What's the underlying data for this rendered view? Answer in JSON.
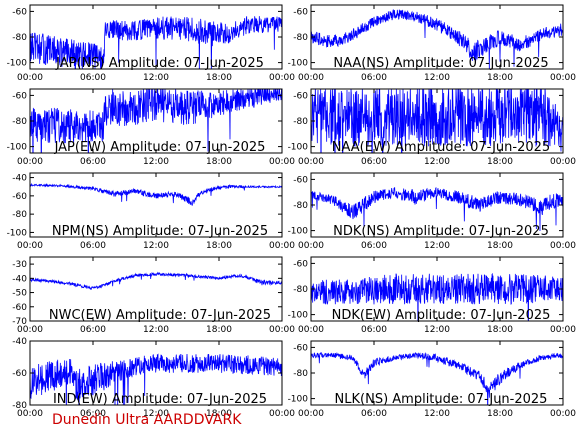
{
  "chart_data": [
    {
      "type": "line",
      "title": "JAP(NS) Amplitude: 07-Jun-2025",
      "ylim": [
        -105,
        -55
      ],
      "yticks": [
        "-60",
        "-80",
        "-100"
      ],
      "ytick_values": [
        -60,
        -80,
        -100
      ],
      "xticks": [
        "00:00",
        "06:00",
        "12:00",
        "18:00",
        "00:00"
      ],
      "color": "#0000ff",
      "series": [
        {
          "x_hours": [
            0,
            3,
            7,
            7.2,
            10,
            12,
            15,
            18,
            21,
            24
          ],
          "y": [
            -88,
            -92,
            -96,
            -74,
            -75,
            -73,
            -74,
            -78,
            -70,
            -70
          ],
          "noise": [
            12,
            12,
            10,
            8,
            8,
            9,
            10,
            10,
            7,
            6
          ]
        }
      ]
    },
    {
      "type": "line",
      "title": "NAA(NS) Amplitude: 07-Jun-2025",
      "ylim": [
        -105,
        -55
      ],
      "yticks": [
        "-60",
        "-80",
        "-100"
      ],
      "ytick_values": [
        -60,
        -80,
        -100
      ],
      "xticks": [
        "00:00",
        "06:00",
        "12:00",
        "18:00",
        "00:00"
      ],
      "color": "#0000ff",
      "series": [
        {
          "x_hours": [
            0,
            2,
            4,
            6,
            8,
            10,
            12,
            14,
            15.5,
            18,
            20,
            22,
            24
          ],
          "y": [
            -80,
            -84,
            -78,
            -68,
            -62,
            -64,
            -70,
            -80,
            -92,
            -80,
            -86,
            -78,
            -74
          ],
          "noise": [
            5,
            5,
            5,
            4,
            4,
            4,
            5,
            6,
            8,
            6,
            6,
            5,
            5
          ]
        }
      ]
    },
    {
      "type": "line",
      "title": "JAP(EW) Amplitude: 07-Jun-2025",
      "ylim": [
        -105,
        -55
      ],
      "yticks": [
        "-60",
        "-80",
        "-100"
      ],
      "ytick_values": [
        -60,
        -80,
        -100
      ],
      "xticks": [
        "00:00",
        "06:00",
        "12:00",
        "18:00",
        "00:00"
      ],
      "color": "#0000ff",
      "series": [
        {
          "x_hours": [
            0,
            3,
            7,
            7.2,
            10,
            12,
            15,
            18,
            21,
            24
          ],
          "y": [
            -82,
            -84,
            -84,
            -68,
            -70,
            -66,
            -70,
            -66,
            -62,
            -58
          ],
          "noise": [
            14,
            14,
            12,
            16,
            14,
            14,
            14,
            10,
            8,
            6
          ]
        }
      ]
    },
    {
      "type": "line",
      "title": "NAA(EW) Amplitude: 07-Jun-2025",
      "ylim": [
        -105,
        -55
      ],
      "yticks": [
        "-60",
        "-80",
        "-100"
      ],
      "ytick_values": [
        -60,
        -80,
        -100
      ],
      "xticks": [
        "00:00",
        "06:00",
        "12:00",
        "18:00",
        "00:00"
      ],
      "color": "#0000ff",
      "series": [
        {
          "x_hours": [
            0,
            4,
            8,
            12,
            16,
            20,
            22.5,
            23,
            24
          ],
          "y": [
            -76,
            -76,
            -76,
            -76,
            -76,
            -76,
            -76,
            -86,
            -86
          ],
          "noise": [
            24,
            24,
            24,
            24,
            24,
            24,
            24,
            20,
            20
          ]
        }
      ]
    },
    {
      "type": "line",
      "title": "NPM(NS) Amplitude: 07-Jun-2025",
      "ylim": [
        -105,
        -35
      ],
      "yticks": [
        "-40",
        "-60",
        "-80",
        "-100"
      ],
      "ytick_values": [
        -40,
        -60,
        -80,
        -100
      ],
      "xticks": [
        "00:00",
        "06:00",
        "12:00",
        "18:00",
        "00:00"
      ],
      "color": "#0000ff",
      "series": [
        {
          "x_hours": [
            0,
            3,
            6,
            8,
            10,
            12,
            14,
            15.5,
            16,
            17.5,
            19,
            21,
            24
          ],
          "y": [
            -48,
            -49,
            -52,
            -58,
            -55,
            -60,
            -58,
            -68,
            -58,
            -52,
            -50,
            -50,
            -50
          ],
          "noise": [
            1,
            1,
            2,
            3,
            3,
            3,
            3,
            4,
            3,
            2,
            2,
            1,
            1
          ]
        }
      ]
    },
    {
      "type": "line",
      "title": "NDK(NS) Amplitude: 07-Jun-2025",
      "ylim": [
        -105,
        -55
      ],
      "yticks": [
        "-60",
        "-80",
        "-100"
      ],
      "ytick_values": [
        -60,
        -80,
        -100
      ],
      "xticks": [
        "00:00",
        "06:00",
        "12:00",
        "18:00",
        "00:00"
      ],
      "color": "#0000ff",
      "series": [
        {
          "x_hours": [
            0,
            2,
            4,
            6,
            8,
            10,
            12,
            14,
            16,
            18,
            20,
            22,
            23,
            24
          ],
          "y": [
            -72,
            -76,
            -86,
            -74,
            -70,
            -74,
            -70,
            -74,
            -80,
            -74,
            -76,
            -82,
            -76,
            -78
          ],
          "noise": [
            3,
            4,
            6,
            5,
            4,
            6,
            4,
            5,
            6,
            5,
            5,
            6,
            6,
            6
          ]
        }
      ]
    },
    {
      "type": "line",
      "title": "NWC(EW) Amplitude: 07-Jun-2025",
      "ylim": [
        -70,
        -25
      ],
      "yticks": [
        "-30",
        "-40",
        "-50",
        "-60",
        "-70"
      ],
      "ytick_values": [
        -30,
        -40,
        -50,
        -60,
        -70
      ],
      "xticks": [
        "00:00",
        "06:00",
        "12:00",
        "18:00",
        "00:00"
      ],
      "color": "#0000ff",
      "series": [
        {
          "x_hours": [
            0,
            2,
            4,
            6,
            7,
            8,
            10,
            12,
            15,
            18,
            20,
            21,
            22,
            24
          ],
          "y": [
            -41,
            -42,
            -44,
            -47,
            -45,
            -42,
            -38,
            -37,
            -38,
            -40,
            -38,
            -40,
            -43,
            -43
          ],
          "noise": [
            1,
            1,
            1,
            1,
            1,
            1,
            1,
            1,
            1,
            1,
            1,
            1,
            2,
            1
          ]
        }
      ]
    },
    {
      "type": "line",
      "title": "NDK(EW) Amplitude: 07-Jun-2025",
      "ylim": [
        -105,
        -55
      ],
      "yticks": [
        "-60",
        "-80",
        "-100"
      ],
      "ytick_values": [
        -60,
        -80,
        -100
      ],
      "xticks": [
        "00:00",
        "06:00",
        "12:00",
        "18:00",
        "00:00"
      ],
      "color": "#0000ff",
      "series": [
        {
          "x_hours": [
            0,
            4,
            8,
            12,
            16,
            20,
            24
          ],
          "y": [
            -82,
            -82,
            -80,
            -80,
            -80,
            -80,
            -80
          ],
          "noise": [
            10,
            10,
            12,
            12,
            12,
            12,
            10
          ]
        }
      ]
    },
    {
      "type": "line",
      "title": "IND(EW) Amplitude: 07-Jun-2025",
      "ylim": [
        -80,
        -40
      ],
      "yticks": [
        "-40",
        "-60",
        "-80"
      ],
      "ytick_values": [
        -40,
        -60,
        -80
      ],
      "xticks": [
        "00:00",
        "06:00",
        "12:00",
        "18:00",
        "00:00"
      ],
      "color": "#0000ff",
      "series": [
        {
          "x_hours": [
            0,
            2,
            4,
            4.4,
            6,
            8,
            10,
            12,
            15,
            18,
            21,
            24
          ],
          "y": [
            -66,
            -62,
            -58,
            -68,
            -64,
            -60,
            -56,
            -54,
            -54,
            -54,
            -55,
            -56
          ],
          "noise": [
            10,
            10,
            8,
            10,
            10,
            8,
            6,
            6,
            6,
            6,
            6,
            6
          ]
        }
      ]
    },
    {
      "type": "line",
      "title": "NLK(NS) Amplitude: 07-Jun-2025",
      "ylim": [
        -105,
        -55
      ],
      "yticks": [
        "-60",
        "-80",
        "-100"
      ],
      "ytick_values": [
        -60,
        -80,
        -100
      ],
      "xticks": [
        "00:00",
        "06:00",
        "12:00",
        "18:00",
        "00:00"
      ],
      "color": "#0000ff",
      "series": [
        {
          "x_hours": [
            0,
            2,
            4,
            5,
            6,
            8,
            10,
            12,
            14,
            16,
            17,
            18,
            20,
            22,
            24
          ],
          "y": [
            -66,
            -66,
            -68,
            -82,
            -72,
            -68,
            -66,
            -68,
            -74,
            -82,
            -94,
            -84,
            -74,
            -68,
            -66
          ],
          "noise": [
            2,
            2,
            2,
            4,
            3,
            2,
            2,
            3,
            3,
            4,
            6,
            5,
            3,
            2,
            2
          ]
        }
      ]
    }
  ],
  "credit": "Dunedin Ultra AARDDVARK"
}
